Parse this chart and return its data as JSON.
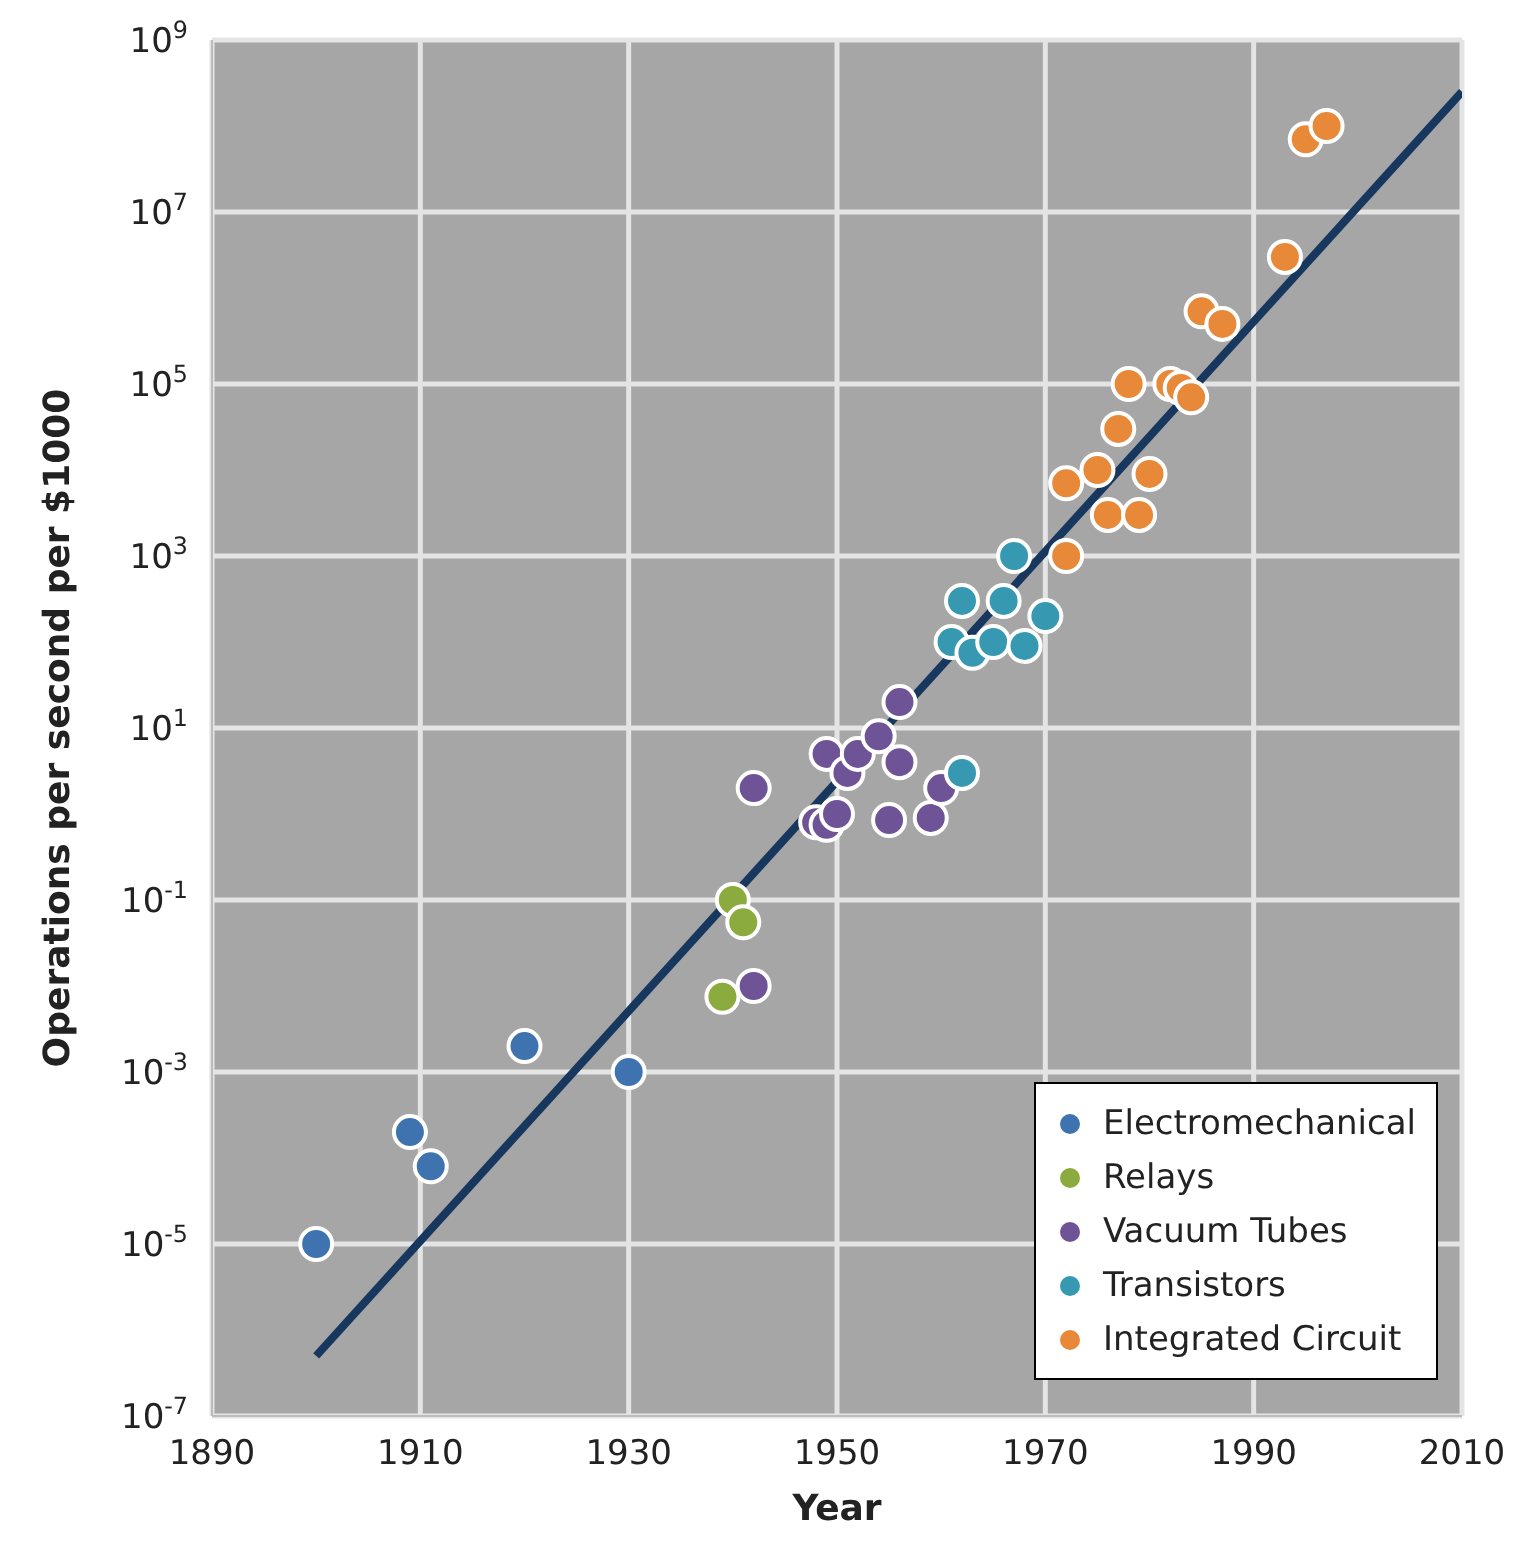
{
  "chart_data": {
    "type": "scatter",
    "xlabel": "Year",
    "ylabel": "Operations per second per $1000",
    "log": "y",
    "grid": true,
    "legend": "bottom right",
    "marker": "circle",
    "xlim": [
      1890,
      2010
    ],
    "xticks": [
      1890,
      1910,
      1930,
      1950,
      1970,
      1990,
      2010
    ],
    "ylim": [
      1e-07,
      1000000000.0
    ],
    "yticks": [
      {
        "value": 1e-07,
        "label": "10$^{-7}$"
      },
      {
        "value": 1e-05,
        "label": "10$^{-5}$"
      },
      {
        "value": 0.001,
        "label": "10$^{-3}$"
      },
      {
        "value": 0.1,
        "label": "10$^{-1}$"
      },
      {
        "value": 10,
        "label": "10$^{1}$"
      },
      {
        "value": 1000,
        "label": "10$^{3}$"
      },
      {
        "value": 100000,
        "label": "10$^{5}$"
      },
      {
        "value": 10000000,
        "label": "10$^{7}$"
      },
      {
        "value": 1000000000,
        "label": "10$^{9}$"
      }
    ],
    "series": [
      {
        "name": "Electromechanical",
        "color": "#3e73b0",
        "x": [
          1900,
          1909,
          1911,
          1920,
          1930
        ],
        "values": [
          1e-05,
          0.0002,
          8e-05,
          0.002,
          0.001
        ]
      },
      {
        "name": "Relays",
        "color": "#8cab3e",
        "x": [
          1939,
          1940,
          1941
        ],
        "values": [
          0.0075,
          0.1,
          0.055
        ]
      },
      {
        "name": "Vacuum Tubes",
        "color": "#6e5496",
        "x": [
          1942,
          1942,
          1948,
          1949,
          1950,
          1949,
          1951,
          1952,
          1954,
          1956,
          1956,
          1955,
          1959,
          1960
        ],
        "values": [
          2,
          0.01,
          0.8,
          0.75,
          1,
          5,
          3,
          5,
          8,
          4,
          20,
          0.85,
          0.9,
          2
        ]
      },
      {
        "name": "Transistors",
        "color": "#3699b1",
        "x": [
          1962,
          1967,
          1962,
          1966,
          1970,
          1961,
          1963,
          1965,
          1968
        ],
        "values": [
          3,
          1000,
          300,
          300,
          200,
          100,
          75,
          100,
          90
        ]
      },
      {
        "name": "Integrated Circuit",
        "color": "#e8893a",
        "x": [
          1972,
          1972,
          1975,
          1977,
          1976,
          1979,
          1980,
          1978,
          1982,
          1983,
          1984,
          1985,
          1987,
          1993,
          1995,
          1997
        ],
        "values": [
          1000,
          7000,
          10000,
          30000,
          3000,
          3000,
          9000,
          100000,
          100000,
          90000,
          70000,
          700000,
          500000,
          3000000,
          70000000,
          100000000
        ]
      },
      {
        "type": "line",
        "marker": "none",
        "color": "#17375e",
        "x": [
          1900,
          2010
        ],
        "values": [
          5e-07,
          250000000.0
        ]
      }
    ]
  }
}
